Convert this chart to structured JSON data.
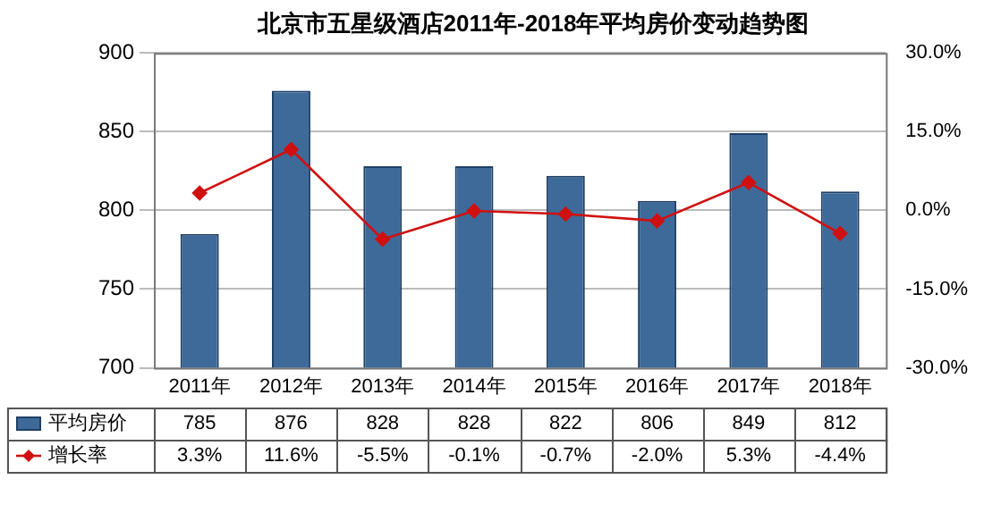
{
  "chart_data": {
    "type": "bar",
    "title": "北京市五星级酒店2011年-2018年平均房价变动趋势图",
    "categories": [
      "2011年",
      "2012年",
      "2013年",
      "2014年",
      "2015年",
      "2016年",
      "2017年",
      "2018年"
    ],
    "series": [
      {
        "name": "平均房价",
        "color": "#3e6a99",
        "values": [
          785,
          876,
          828,
          828,
          822,
          806,
          849,
          812
        ],
        "value_labels": [
          "785",
          "876",
          "828",
          "828",
          "822",
          "806",
          "849",
          "812"
        ]
      },
      {
        "name": "增长率",
        "type": "line",
        "axis": "y2",
        "color": "#d01010",
        "values": [
          3.3,
          11.6,
          -5.5,
          -0.1,
          -0.7,
          -2.0,
          5.3,
          -4.4
        ],
        "value_labels": [
          "3.3%",
          "11.6%",
          "-5.5%",
          "-0.1%",
          "-0.7%",
          "-2.0%",
          "5.3%",
          "-4.4%"
        ]
      }
    ],
    "ylim": [
      700,
      900
    ],
    "yticks": [
      700,
      750,
      800,
      850,
      900
    ],
    "y2lim": [
      -30,
      30
    ],
    "y2ticks": [
      {
        "value": -30,
        "label": "-30.0%"
      },
      {
        "value": -15,
        "label": "-15.0%"
      },
      {
        "value": 0,
        "label": "0.0%"
      },
      {
        "value": 15,
        "label": "15.0%"
      },
      {
        "value": 30,
        "label": "30.0%"
      }
    ],
    "grid": "y",
    "legend": "bottom",
    "marker": "diamond"
  }
}
